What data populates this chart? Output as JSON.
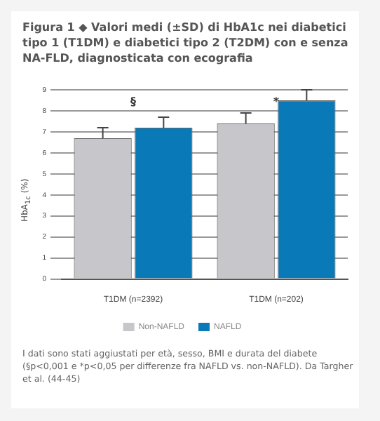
{
  "chart_data": {
    "type": "bar",
    "title": "Figura 1 ◆ Valori medi (±SD) di HbA1c nei diabetici tipo 1 (T1DM) e diabetici tipo 2 (T2DM) con e senza NA-FLD, diagnosticata con ecografia",
    "ylabel": "HbA$_{1c}$ (%)",
    "categories": [
      "T1DM (n=2392)",
      "T1DM (n=202)"
    ],
    "series": [
      {
        "name": "Non-NAFLD",
        "color": "#c6c6cb",
        "values": [
          6.7,
          7.4
        ],
        "errors": [
          [
            6.7,
            7.2
          ],
          [
            7.4,
            7.9
          ]
        ]
      },
      {
        "name": "NAFLD",
        "color": "#0a79b8",
        "values": [
          7.2,
          8.5
        ],
        "errors": [
          [
            7.2,
            7.7
          ],
          [
            8.5,
            9.0
          ]
        ]
      }
    ],
    "ylim": [
      0,
      9
    ],
    "yticks": [
      0,
      1,
      2,
      3,
      4,
      5,
      6,
      7,
      8,
      9
    ],
    "grid": "y",
    "legend": "bottom",
    "annotations": [
      "§",
      "*",
      "I dati sono stati aggiustati per età, sesso, BMI e durata del diabete (§p<0,001 e *p<0,05 per differenze fra NAFLD vs. non-NAFLD). Da Targher et al. (44-45)"
    ]
  }
}
